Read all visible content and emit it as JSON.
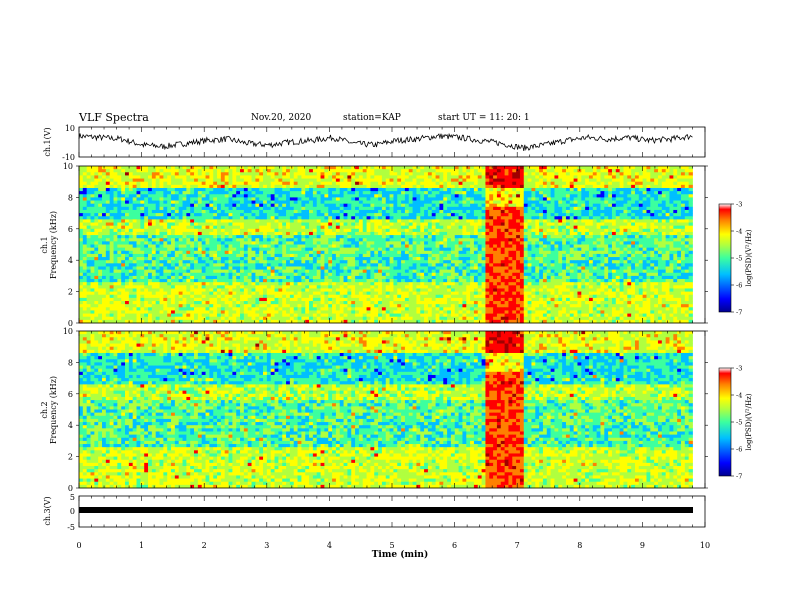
{
  "header": {
    "title": "VLF Spectra",
    "date": "Nov.20, 2020",
    "station": "station=KAP",
    "start": "start UT =  11: 20: 1"
  },
  "chart_data": [
    {
      "type": "line",
      "panel": "ch1-waveform",
      "ylabel": "ch.1(V)",
      "ylim": [
        -10,
        10
      ],
      "y_ticks": [
        "10",
        "-10"
      ],
      "series": [
        {
          "description_values": [
            4,
            3,
            2,
            -2,
            -3,
            -1,
            1,
            2,
            -1,
            -2,
            0,
            1,
            3,
            -1,
            -2,
            1,
            2,
            4,
            3,
            1,
            -1,
            -4,
            -2,
            1,
            3,
            2,
            3,
            1,
            2,
            4
          ]
        }
      ],
      "x_range_min": [
        0,
        9.8
      ]
    },
    {
      "type": "heatmap",
      "panel": "ch1-spectrogram",
      "ylabel": "ch.1\nFrequency (kHz)",
      "ylim": [
        0,
        10
      ],
      "y_ticks": [
        "0",
        "2",
        "4",
        "6",
        "8",
        "10"
      ],
      "x_range_min": [
        0,
        9.8
      ],
      "colorbar": {
        "label": "log(PSD)(V²/Hz)",
        "range": [
          -7,
          -3
        ],
        "ticks": [
          "-3",
          "-4",
          "-5",
          "-6",
          "-7"
        ]
      }
    },
    {
      "type": "heatmap",
      "panel": "ch2-spectrogram",
      "ylabel": "ch.2\nFrequency (kHz)",
      "ylim": [
        0,
        10
      ],
      "y_ticks": [
        "0",
        "2",
        "4",
        "6",
        "8",
        "10"
      ],
      "x_range_min": [
        0,
        9.8
      ],
      "colorbar": {
        "label": "log(PSD)(V²/Hz)",
        "range": [
          -7,
          -3
        ],
        "ticks": [
          "-3",
          "-4",
          "-5",
          "-6",
          "-7"
        ]
      }
    },
    {
      "type": "line",
      "panel": "ch3-waveform",
      "ylabel": "ch.3(V)",
      "ylim": [
        -5,
        5
      ],
      "y_ticks": [
        "5",
        "0",
        "-5"
      ],
      "series": [
        {
          "description_values": [
            0,
            0
          ]
        }
      ],
      "x_range_min": [
        0,
        9.8
      ]
    }
  ],
  "xaxis": {
    "label": "Time (min)",
    "range": [
      0,
      10
    ],
    "ticks": [
      "0",
      "1",
      "2",
      "3",
      "4",
      "5",
      "6",
      "7",
      "8",
      "9",
      "10"
    ]
  },
  "colors": {
    "jet": [
      "#00008f",
      "#0000ff",
      "#00bfff",
      "#3cff9f",
      "#b0ff3f",
      "#ffff00",
      "#ff8000",
      "#ff0000",
      "#a00000"
    ]
  }
}
